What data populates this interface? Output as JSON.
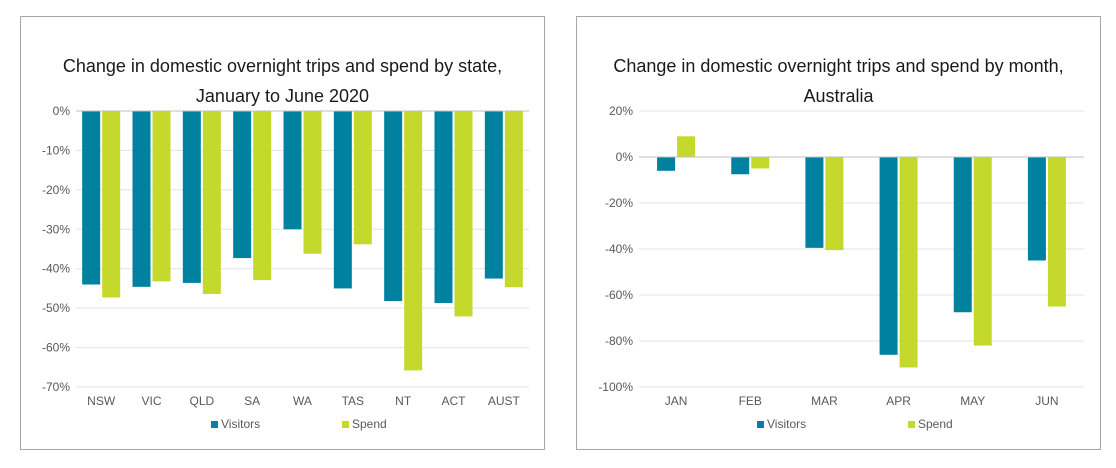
{
  "colors": {
    "visitors": "#00819f",
    "spend": "#c5d92d",
    "grid": "#e3e3e3",
    "axis": "#bfbfbf"
  },
  "chart_data": [
    {
      "type": "bar",
      "title_lines": [
        "Change in domestic overnight trips and spend by state,",
        "January to June 2020"
      ],
      "categories": [
        "NSW",
        "VIC",
        "QLD",
        "SA",
        "WA",
        "TAS",
        "NT",
        "ACT",
        "AUST"
      ],
      "series": [
        {
          "name": "Visitors",
          "values": [
            -44,
            -44.6,
            -43.6,
            -37.3,
            -30,
            -45,
            -48.2,
            -48.7,
            -42.5
          ]
        },
        {
          "name": "Spend",
          "values": [
            -47.3,
            -43.2,
            -46.4,
            -42.9,
            -36.2,
            -33.8,
            -65.8,
            -52.1,
            -44.7
          ]
        }
      ],
      "ylim": [
        -70,
        0
      ],
      "yticks": [
        "0%",
        "-10%",
        "-20%",
        "-30%",
        "-40%",
        "-50%",
        "-60%",
        "-70%"
      ],
      "grid": true,
      "legend": "bottom"
    },
    {
      "type": "bar",
      "title_lines": [
        "Change in domestic overnight trips and spend by month,",
        "Australia"
      ],
      "categories": [
        "JAN",
        "FEB",
        "MAR",
        "APR",
        "MAY",
        "JUN"
      ],
      "series": [
        {
          "name": "Visitors",
          "values": [
            -6,
            -7.5,
            -39.5,
            -86,
            -67.5,
            -45
          ]
        },
        {
          "name": "Spend",
          "values": [
            9,
            -5,
            -40.5,
            -91.5,
            -82,
            -65
          ]
        }
      ],
      "ylim": [
        -100,
        20
      ],
      "yticks": [
        "20%",
        "0%",
        "-20%",
        "-40%",
        "-60%",
        "-80%",
        "-100%"
      ],
      "grid": true,
      "legend": "bottom"
    }
  ]
}
